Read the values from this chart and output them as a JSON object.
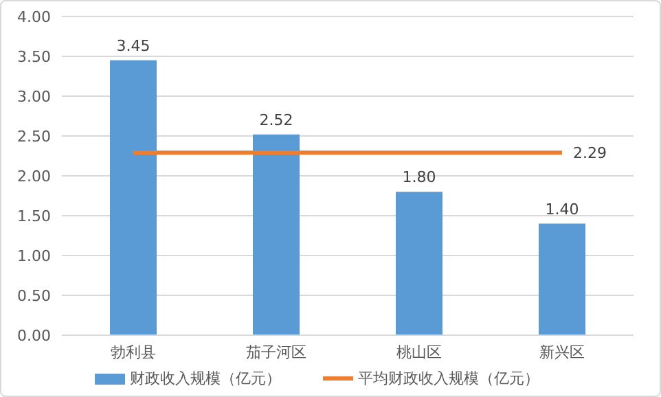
{
  "chart_data": {
    "type": "bar",
    "categories": [
      "勃利县",
      "茄子河区",
      "桃山区",
      "新兴区"
    ],
    "series": [
      {
        "name": "财政收入规模（亿元）",
        "color": "#5b9bd5",
        "values": [
          3.45,
          2.52,
          1.8,
          1.4
        ],
        "value_labels": [
          "3.45",
          "2.52",
          "1.80",
          "1.40"
        ]
      },
      {
        "name": "平均财政收入规模（亿元）",
        "type": "line",
        "color": "#ed7d31",
        "values": [
          2.29,
          2.29,
          2.29,
          2.29
        ],
        "value_labels": [
          null,
          null,
          null,
          "2.29"
        ]
      }
    ],
    "ylim": [
      0,
      4
    ],
    "yticks": [
      {
        "value": 0,
        "label": "0.00"
      },
      {
        "value": 0.5,
        "label": "0.50"
      },
      {
        "value": 1,
        "label": "1.00"
      },
      {
        "value": 1.5,
        "label": "1.50"
      },
      {
        "value": 2,
        "label": "2.00"
      },
      {
        "value": 2.5,
        "label": "2.50"
      },
      {
        "value": 3,
        "label": "3.00"
      },
      {
        "value": 3.5,
        "label": "3.50"
      },
      {
        "value": 4,
        "label": "4.00"
      }
    ],
    "grid": "y",
    "legend": "bottom",
    "marker": "none"
  }
}
